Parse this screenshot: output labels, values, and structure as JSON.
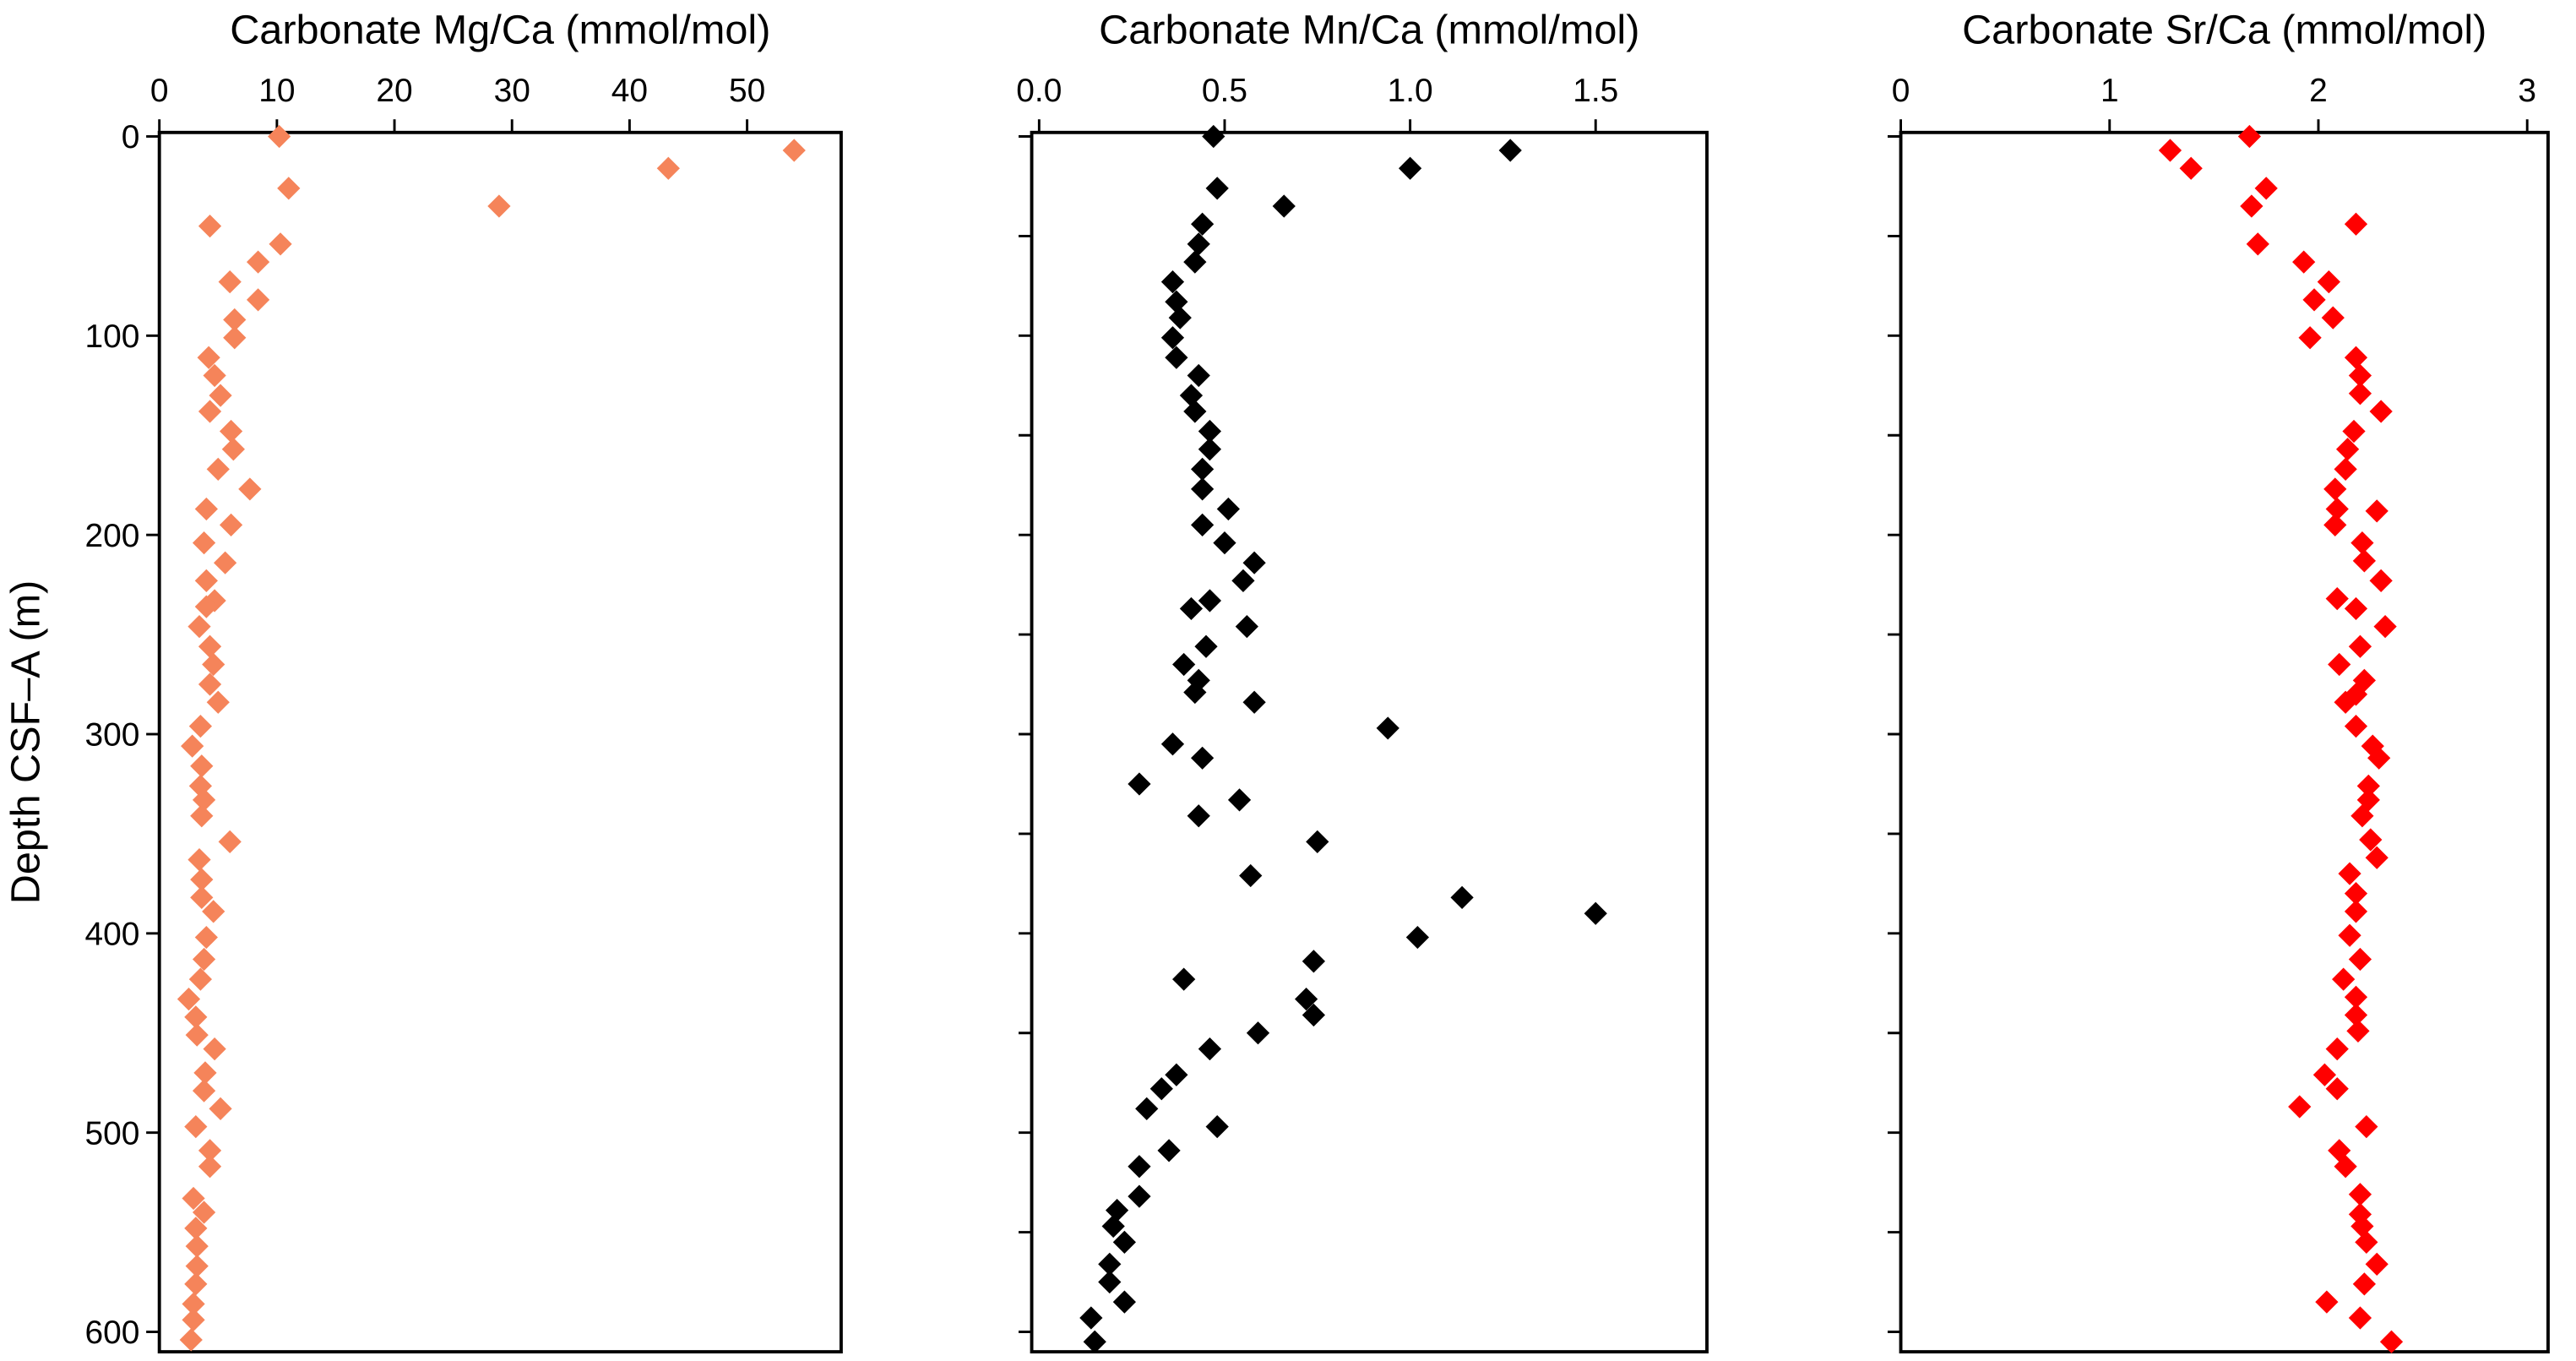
{
  "chart_data": [
    {
      "type": "scatter",
      "title": "Carbonate Mg/Ca (mmol/mol)",
      "ylabel": "Depth CSF–A (m)",
      "color": "#f5845a",
      "ytick_labels": true,
      "xlim": [
        0,
        58
      ],
      "xticks": [
        0,
        10,
        20,
        30,
        40,
        50
      ],
      "ylim": [
        -2,
        610
      ],
      "yticks": [
        0,
        100,
        200,
        300,
        400,
        500,
        600
      ],
      "x": [
        10.2,
        54,
        43.3,
        11,
        28.9,
        4.3,
        10.3,
        8.4,
        6,
        8.4,
        6.4,
        6.4,
        4.2,
        4.7,
        5.2,
        4.3,
        6.1,
        6.3,
        5,
        7.7,
        4,
        6.1,
        3.8,
        5.6,
        4,
        4.7,
        4,
        3.4,
        4.3,
        4.6,
        4.3,
        5,
        3.5,
        2.8,
        3.6,
        3.5,
        3.8,
        3.6,
        6,
        3.4,
        3.6,
        3.6,
        4.6,
        4,
        3.8,
        3.5,
        2.5,
        3.1,
        3.2,
        4.7,
        3.9,
        3.8,
        5.2,
        3.1,
        4.3,
        4.3,
        2.9,
        3.8,
        3.1,
        3.2,
        3.2,
        3.1,
        2.9,
        2.9,
        2.7
      ],
      "values": [
        0,
        7,
        16,
        26,
        35,
        45,
        54,
        63,
        73,
        82,
        92,
        101,
        111,
        120,
        130,
        138,
        148,
        157,
        167,
        177,
        187,
        195,
        204,
        214,
        223,
        233,
        236,
        246,
        256,
        265,
        275,
        284,
        296,
        306,
        316,
        326,
        333,
        341,
        354,
        363,
        373,
        382,
        389,
        402,
        413,
        423,
        433,
        442,
        451,
        458,
        470,
        479,
        488,
        497,
        509,
        517,
        533,
        540,
        548,
        557,
        567,
        576,
        586,
        594,
        604
      ]
    },
    {
      "type": "scatter",
      "title": "Carbonate Mn/Ca (mmol/mol)",
      "color": "#000000",
      "ytick_labels": false,
      "xlim": [
        -0.02,
        1.8
      ],
      "xticks": [
        {
          "value": 0,
          "label": "0.0"
        },
        0.5,
        {
          "value": 1,
          "label": "1.0"
        },
        1.5
      ],
      "ylim": [
        -2,
        610
      ],
      "yticks": [
        0,
        50,
        100,
        150,
        200,
        250,
        300,
        350,
        400,
        450,
        500,
        550,
        600
      ],
      "x": [
        0.47,
        1.27,
        1.0,
        0.48,
        0.66,
        0.44,
        0.43,
        0.42,
        0.36,
        0.37,
        0.38,
        0.36,
        0.37,
        0.43,
        0.41,
        0.42,
        0.46,
        0.46,
        0.44,
        0.44,
        0.51,
        0.44,
        0.5,
        0.58,
        0.55,
        0.46,
        0.41,
        0.56,
        0.45,
        0.39,
        0.43,
        0.42,
        0.58,
        0.94,
        0.36,
        0.44,
        0.27,
        0.54,
        0.43,
        0.75,
        0.57,
        1.14,
        1.5,
        1.02,
        0.74,
        0.39,
        0.72,
        0.74,
        0.59,
        0.46,
        0.37,
        0.33,
        0.29,
        0.48,
        0.35,
        0.27,
        0.27,
        0.21,
        0.2,
        0.23,
        0.19,
        0.19,
        0.23,
        0.14,
        0.15
      ],
      "values": [
        0,
        7,
        16,
        26,
        35,
        44,
        54,
        63,
        73,
        83,
        91,
        101,
        111,
        120,
        130,
        138,
        148,
        157,
        167,
        177,
        187,
        195,
        204,
        214,
        223,
        233,
        237,
        246,
        256,
        265,
        273,
        279,
        284,
        297,
        305,
        312,
        325,
        333,
        341,
        354,
        371,
        382,
        390,
        402,
        414,
        423,
        433,
        441,
        450,
        458,
        471,
        478,
        488,
        497,
        509,
        517,
        532,
        539,
        547,
        555,
        566,
        575,
        585,
        593,
        605
      ]
    },
    {
      "type": "scatter",
      "title": "Carbonate Sr/Ca (mmol/mol)",
      "color": "#ff0000",
      "ytick_labels": false,
      "xlim": [
        0,
        3.1
      ],
      "xticks": [
        0,
        1,
        2,
        3
      ],
      "ylim": [
        -2,
        610
      ],
      "yticks": [
        0,
        50,
        100,
        150,
        200,
        250,
        300,
        350,
        400,
        450,
        500,
        550,
        600
      ],
      "x": [
        1.67,
        1.29,
        1.39,
        1.75,
        1.68,
        2.18,
        1.71,
        1.93,
        2.05,
        1.98,
        2.07,
        1.96,
        2.18,
        2.2,
        2.2,
        2.3,
        2.17,
        2.14,
        2.13,
        2.08,
        2.09,
        2.28,
        2.08,
        2.21,
        2.22,
        2.3,
        2.09,
        2.18,
        2.32,
        2.2,
        2.1,
        2.22,
        2.18,
        2.13,
        2.18,
        2.26,
        2.29,
        2.24,
        2.24,
        2.21,
        2.25,
        2.28,
        2.15,
        2.18,
        2.18,
        2.15,
        2.2,
        2.12,
        2.18,
        2.18,
        2.19,
        2.09,
        2.03,
        2.09,
        1.91,
        2.23,
        2.1,
        2.13,
        2.2,
        2.2,
        2.21,
        2.23,
        2.28,
        2.22,
        2.04,
        2.2,
        2.35
      ],
      "values": [
        0,
        7,
        16,
        26,
        35,
        44,
        54,
        63,
        73,
        82,
        91,
        101,
        111,
        120,
        129,
        138,
        148,
        157,
        167,
        177,
        187,
        188,
        195,
        204,
        213,
        223,
        232,
        237,
        246,
        256,
        265,
        273,
        280,
        284,
        296,
        306,
        312,
        326,
        333,
        341,
        353,
        362,
        370,
        380,
        389,
        401,
        413,
        423,
        432,
        441,
        449,
        458,
        471,
        478,
        487,
        497,
        509,
        517,
        531,
        541,
        547,
        555,
        566,
        576,
        585,
        593,
        605
      ]
    }
  ]
}
